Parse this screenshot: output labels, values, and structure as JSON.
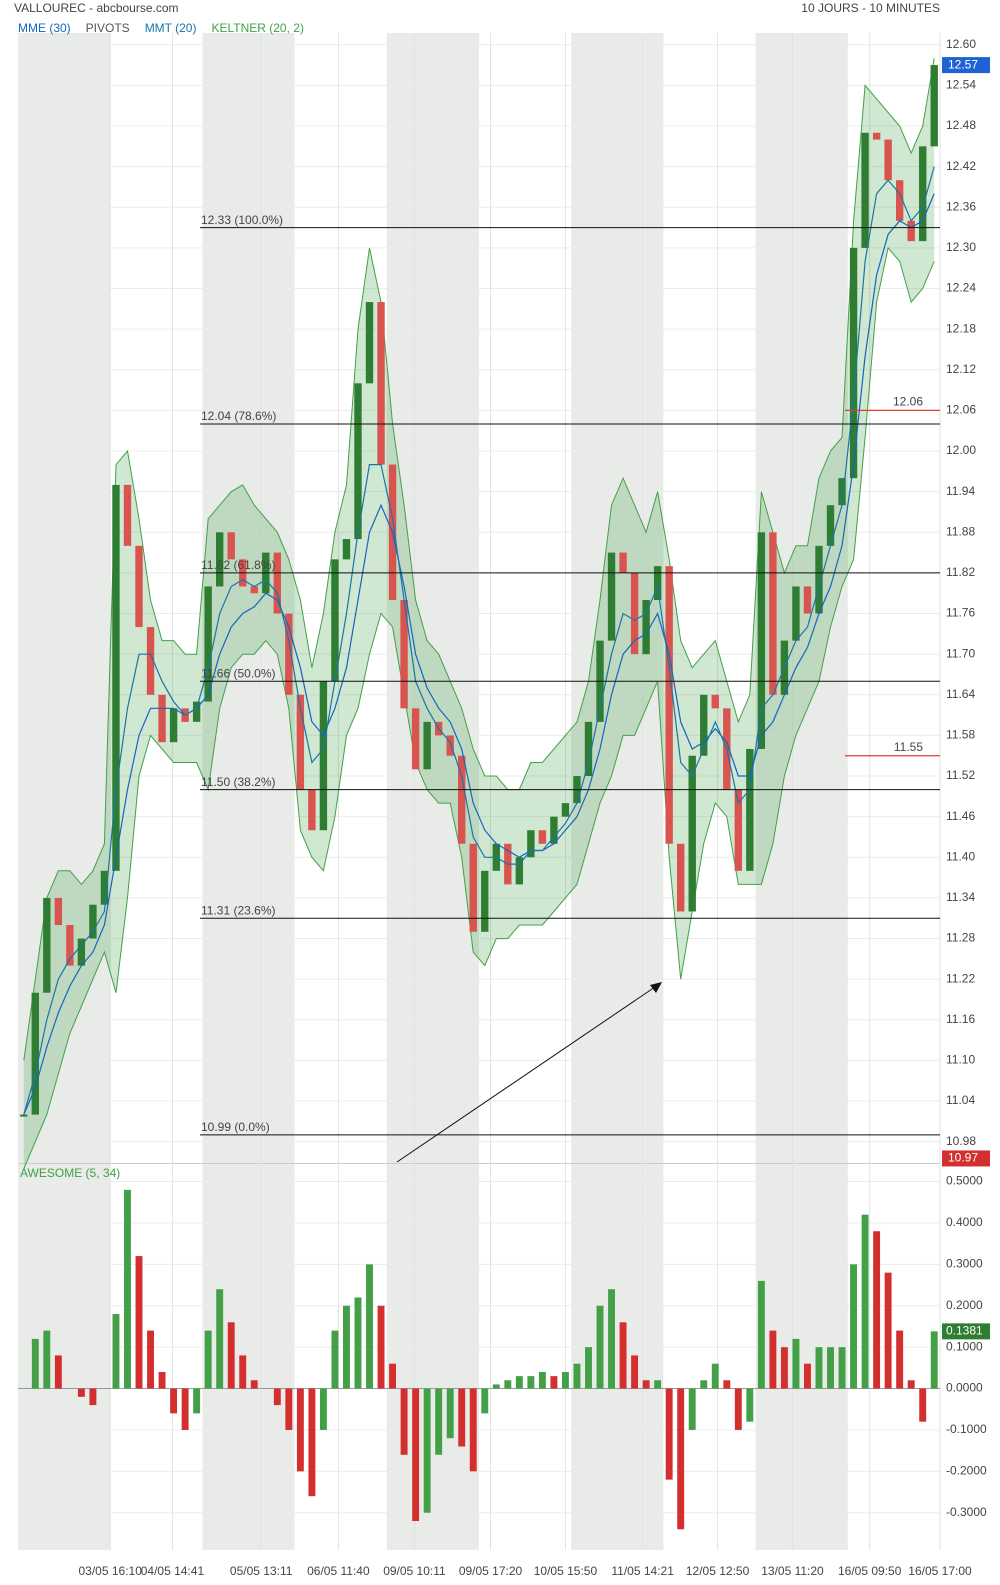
{
  "chart_data": [
    {
      "type": "candlestick",
      "title": "VALLOUREC - abcbourse.com",
      "subtitle": "10 JOURS - 10 MINUTES",
      "xlim": [
        0,
        80
      ],
      "xticks": [
        {
          "value": 8.0,
          "label": "03/05 16:10"
        },
        {
          "value": 13.4,
          "label": "04/05 14:41"
        },
        {
          "value": 21.1,
          "label": "05/05 13:11"
        },
        {
          "value": 27.8,
          "label": "06/05 11:40"
        },
        {
          "value": 34.4,
          "label": "09/05 10:11"
        },
        {
          "value": 41.0,
          "label": "09/05 17:20"
        },
        {
          "value": 47.5,
          "label": "10/05 15:50"
        },
        {
          "value": 54.2,
          "label": "11/05 14:21"
        },
        {
          "value": 60.7,
          "label": "12/05 12:50"
        },
        {
          "value": 67.2,
          "label": "13/05 11:20"
        },
        {
          "value": 73.9,
          "label": "16/05 09:50"
        },
        {
          "value": 80,
          "label": "16/05 17:00"
        }
      ],
      "ylim": [
        10.95,
        12.61
      ],
      "yticks": [
        {
          "value": 12.6,
          "label": "12.60"
        },
        {
          "value": 12.54,
          "label": "12.54"
        },
        {
          "value": 12.48,
          "label": "12.48"
        },
        {
          "value": 12.42,
          "label": "12.42"
        },
        {
          "value": 12.36,
          "label": "12.36"
        },
        {
          "value": 12.3,
          "label": "12.30"
        },
        {
          "value": 12.24,
          "label": "12.24"
        },
        {
          "value": 12.18,
          "label": "12.18"
        },
        {
          "value": 12.12,
          "label": "12.12"
        },
        {
          "value": 12.06,
          "label": "12.06"
        },
        {
          "value": 12.0,
          "label": "12.00"
        },
        {
          "value": 11.94,
          "label": "11.94"
        },
        {
          "value": 11.88,
          "label": "11.88"
        },
        {
          "value": 11.82,
          "label": "11.82"
        },
        {
          "value": 11.76,
          "label": "11.76"
        },
        {
          "value": 11.7,
          "label": "11.70"
        },
        {
          "value": 11.64,
          "label": "11.64"
        },
        {
          "value": 11.58,
          "label": "11.58"
        },
        {
          "value": 11.52,
          "label": "11.52"
        },
        {
          "value": 11.46,
          "label": "11.46"
        },
        {
          "value": 11.4,
          "label": "11.40"
        },
        {
          "value": 11.34,
          "label": "11.34"
        },
        {
          "value": 11.28,
          "label": "11.28"
        },
        {
          "value": 11.22,
          "label": "11.22"
        },
        {
          "value": 11.16,
          "label": "11.16"
        },
        {
          "value": 11.1,
          "label": "11.10"
        },
        {
          "value": 11.04,
          "label": "11.04"
        },
        {
          "value": 10.98,
          "label": "10.98"
        }
      ],
      "grid": true,
      "up_color": "#2e7d32",
      "down_color": "#d9534f",
      "last_color": "#1e63d6",
      "series": [
        {
          "values": [
            11.02,
            11.2,
            11.34,
            11.3,
            11.24,
            11.28,
            11.33,
            11.38,
            11.95,
            11.86,
            11.74,
            11.64,
            11.57,
            11.62,
            11.6,
            11.63,
            11.8,
            11.88,
            11.84,
            11.8,
            11.79,
            11.85,
            11.76,
            11.64,
            11.5,
            11.44,
            11.66,
            11.84,
            11.87,
            12.1,
            12.22,
            11.98,
            11.78,
            11.62,
            11.53,
            11.6,
            11.58,
            11.55,
            11.42,
            11.29,
            11.38,
            11.42,
            11.36,
            11.4,
            11.44,
            11.42,
            11.46,
            11.48,
            11.52,
            11.6,
            11.72,
            11.85,
            11.82,
            11.7,
            11.78,
            11.83,
            11.42,
            11.32,
            11.55,
            11.64,
            11.62,
            11.5,
            11.38,
            11.56,
            11.88,
            11.64,
            11.72,
            11.8,
            11.76,
            11.86,
            11.92,
            11.96,
            12.3,
            12.47,
            12.46,
            12.4,
            12.34,
            12.31,
            12.45,
            12.57
          ]
        },
        {
          "name": "MME (30)",
          "color": "#1565c0",
          "values": [
            11.02,
            11.06,
            11.12,
            11.17,
            11.21,
            11.24,
            11.26,
            11.3,
            11.4,
            11.5,
            11.58,
            11.62,
            11.62,
            11.62,
            11.61,
            11.62,
            11.64,
            11.7,
            11.74,
            11.76,
            11.77,
            11.79,
            11.78,
            11.74,
            11.68,
            11.6,
            11.58,
            11.62,
            11.68,
            11.78,
            11.88,
            11.92,
            11.88,
            11.8,
            11.7,
            11.65,
            11.62,
            11.6,
            11.56,
            11.48,
            11.44,
            11.42,
            11.41,
            11.4,
            11.41,
            11.41,
            11.42,
            11.44,
            11.46,
            11.5,
            11.56,
            11.64,
            11.7,
            11.72,
            11.73,
            11.76,
            11.7,
            11.6,
            11.56,
            11.57,
            11.59,
            11.57,
            11.52,
            11.52,
            11.58,
            11.6,
            11.64,
            11.68,
            11.71,
            11.76,
            11.8,
            11.86,
            11.98,
            12.14,
            12.26,
            12.32,
            12.34,
            12.33,
            12.34,
            12.38
          ]
        },
        {
          "name": "PIVOTS",
          "color": "#e53935",
          "label_color": "#555",
          "values": [
            12.06,
            11.55
          ]
        },
        {
          "name": "MMT (20)",
          "color": "#1976a8",
          "values": [
            11.02,
            11.08,
            11.16,
            11.22,
            11.25,
            11.27,
            11.29,
            11.32,
            11.5,
            11.62,
            11.7,
            11.7,
            11.66,
            11.63,
            11.61,
            11.62,
            11.68,
            11.76,
            11.8,
            11.81,
            11.8,
            11.81,
            11.79,
            11.72,
            11.62,
            11.54,
            11.56,
            11.66,
            11.76,
            11.88,
            11.98,
            11.98,
            11.9,
            11.78,
            11.66,
            11.62,
            11.59,
            11.57,
            11.52,
            11.43,
            11.4,
            11.4,
            11.39,
            11.39,
            11.41,
            11.41,
            11.43,
            11.45,
            11.48,
            11.54,
            11.62,
            11.7,
            11.76,
            11.75,
            11.76,
            11.8,
            11.68,
            11.54,
            11.52,
            11.56,
            11.6,
            11.56,
            11.48,
            11.5,
            11.62,
            11.64,
            11.68,
            11.72,
            11.74,
            11.8,
            11.86,
            11.92,
            12.08,
            12.28,
            12.38,
            12.4,
            12.38,
            12.34,
            12.36,
            12.42
          ]
        },
        {
          "name": "KELTNER (20, 2)",
          "color": "#43a047",
          "upper": [
            11.1,
            11.22,
            11.34,
            11.38,
            11.38,
            11.36,
            11.38,
            11.42,
            11.98,
            12.0,
            11.9,
            11.78,
            11.72,
            11.72,
            11.7,
            11.7,
            11.9,
            11.92,
            11.94,
            11.95,
            11.92,
            11.9,
            11.88,
            11.84,
            11.78,
            11.68,
            11.76,
            11.88,
            11.95,
            12.18,
            12.3,
            12.22,
            12.04,
            11.92,
            11.78,
            11.72,
            11.7,
            11.66,
            11.62,
            11.56,
            11.52,
            11.52,
            11.5,
            11.5,
            11.54,
            11.54,
            11.56,
            11.58,
            11.6,
            11.66,
            11.78,
            11.92,
            11.96,
            11.92,
            11.88,
            11.94,
            11.84,
            11.72,
            11.68,
            11.7,
            11.72,
            11.66,
            11.6,
            11.64,
            11.94,
            11.88,
            11.82,
            11.86,
            11.86,
            11.96,
            12.0,
            12.02,
            12.34,
            12.54,
            12.52,
            12.5,
            12.48,
            12.44,
            12.48,
            12.58
          ],
          "lower": [
            10.94,
            10.98,
            11.02,
            11.08,
            11.14,
            11.18,
            11.22,
            11.26,
            11.2,
            11.34,
            11.52,
            11.58,
            11.56,
            11.54,
            11.54,
            11.54,
            11.5,
            11.62,
            11.68,
            11.7,
            11.7,
            11.72,
            11.7,
            11.62,
            11.44,
            11.4,
            11.38,
            11.46,
            11.58,
            11.62,
            11.7,
            11.76,
            11.74,
            11.64,
            11.54,
            11.5,
            11.48,
            11.48,
            11.4,
            11.26,
            11.24,
            11.28,
            11.28,
            11.3,
            11.3,
            11.3,
            11.32,
            11.34,
            11.36,
            11.42,
            11.48,
            11.52,
            11.58,
            11.58,
            11.62,
            11.66,
            11.4,
            11.22,
            11.32,
            11.42,
            11.48,
            11.46,
            11.36,
            11.36,
            11.36,
            11.42,
            11.52,
            11.58,
            11.62,
            11.66,
            11.74,
            11.8,
            11.84,
            12.02,
            12.22,
            12.3,
            12.28,
            12.22,
            12.24,
            12.28
          ]
        }
      ],
      "fibonacci": [
        {
          "value": 12.33,
          "label": "12.33  (100.0%)"
        },
        {
          "value": 12.04,
          "label": "12.04  (78.6%)"
        },
        {
          "value": 11.82,
          "label": "11.82  (61.8%)"
        },
        {
          "value": 11.66,
          "label": "11.66  (50.0%)"
        },
        {
          "value": 11.5,
          "label": "11.50  (38.2%)"
        },
        {
          "value": 11.31,
          "label": "11.31  (23.6%)"
        },
        {
          "value": 10.99,
          "label": "10.99  (0.0%)"
        }
      ],
      "min_label": 10.97,
      "min_color": "#d32f2f"
    },
    {
      "type": "bar",
      "title": "AWESOME (5, 34)",
      "up_color": "#43a047",
      "down_color": "#d32f2f",
      "last_color": "#2e7d32",
      "xlim": [
        0,
        80
      ],
      "ylim": [
        -0.39,
        0.54
      ],
      "yticks": [
        {
          "value": 0.5,
          "label": "0.5000"
        },
        {
          "value": 0.4,
          "label": "0.4000"
        },
        {
          "value": 0.3,
          "label": "0.3000"
        },
        {
          "value": 0.2,
          "label": "0.2000"
        },
        {
          "value": 0.1,
          "label": "0.1000"
        },
        {
          "value": 0,
          "label": "0.0000"
        },
        {
          "value": -0.1,
          "label": "-0.1000"
        },
        {
          "value": -0.2,
          "label": "-0.2000"
        },
        {
          "value": -0.3,
          "label": "-0.3000"
        }
      ],
      "grid": true,
      "values": [
        0.0,
        0.12,
        0.14,
        0.08,
        0.0,
        -0.02,
        -0.04,
        0.0,
        0.18,
        0.48,
        0.32,
        0.14,
        0.04,
        -0.06,
        -0.1,
        -0.06,
        0.14,
        0.24,
        0.16,
        0.08,
        0.02,
        0.0,
        -0.04,
        -0.1,
        -0.2,
        -0.26,
        -0.1,
        0.14,
        0.2,
        0.22,
        0.3,
        0.2,
        0.06,
        -0.16,
        -0.32,
        -0.3,
        -0.16,
        -0.12,
        -0.14,
        -0.2,
        -0.06,
        0.01,
        0.02,
        0.03,
        0.03,
        0.04,
        0.03,
        0.04,
        0.06,
        0.1,
        0.2,
        0.24,
        0.16,
        0.08,
        0.02,
        0.02,
        -0.22,
        -0.34,
        -0.1,
        0.02,
        0.06,
        0.02,
        -0.1,
        -0.08,
        0.26,
        0.14,
        0.1,
        0.12,
        0.06,
        0.1,
        0.1,
        0.1,
        0.3,
        0.42,
        0.38,
        0.28,
        0.14,
        0.02,
        -0.08,
        0.1381
      ]
    }
  ]
}
